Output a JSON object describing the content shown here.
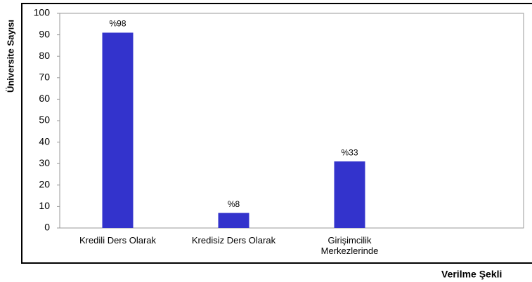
{
  "chart_data": {
    "type": "bar",
    "y_label": "Üniversite Sayısı",
    "x_label": "Verilme Şekli",
    "categories": [
      "Kredili Ders Olarak",
      "Kredisiz Ders Olarak",
      "Girişimcilik Merkezlerinde",
      null
    ],
    "values": [
      91,
      7,
      31,
      null
    ],
    "annotations": [
      "%98",
      "%8",
      "%33"
    ],
    "color": "#3333cc",
    "ylim": [
      0,
      100
    ],
    "yticks": [
      0,
      10,
      20,
      30,
      40,
      50,
      60,
      70,
      80,
      90,
      100
    ],
    "grid": false
  }
}
